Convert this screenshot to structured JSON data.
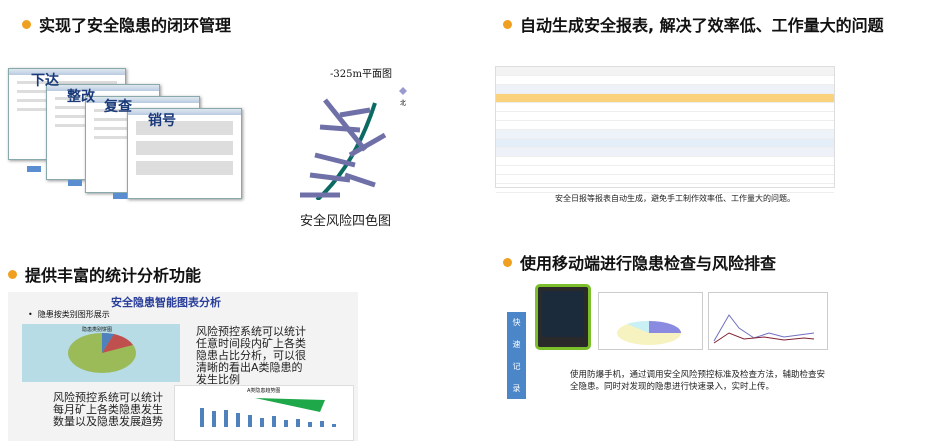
{
  "sections": [
    {
      "title": "实现了安全隐患的闭环管理"
    },
    {
      "title": "自动生成安全报表, 解决了效率低、工作量大的问题"
    },
    {
      "title": "提供丰富的统计分析功能"
    },
    {
      "title": "使用移动端进行隐患检查与风险排查"
    }
  ],
  "closed_loop": {
    "steps": [
      "下达",
      "整改",
      "复查",
      "销号"
    ],
    "map_title": "-325m平面图",
    "map_caption": "安全风险四色图",
    "compass_label": "北"
  },
  "report": {
    "caption": "安全日报等报表自动生成，避免手工制作效率低、工作量大的问题。"
  },
  "stats": {
    "panel_title": "安全隐患智能图表分析",
    "bullet": "隐患按类别图形展示",
    "pie_text": "风险预控系统可以统计任意时间段内矿上各类隐患占比分析，可以很清晰的看出A类隐患的发生比例",
    "trend_text": "风险预控系统可以统计每月矿上各类隐患发生数量以及隐患发展趋势",
    "pie_title": "隐患类别饼图",
    "bar_title": "A类隐患趋势图"
  },
  "mobile": {
    "side_label": [
      "快",
      "速",
      "记",
      "录"
    ],
    "description": "使用防爆手机，通过调用安全风险预控标准及检查方法，辅助检查安全隐患。同时对发现的隐患进行快速录入，实时上传。"
  },
  "colors": {
    "bullet": "#f0a020",
    "accent_blue": "#4a86c8",
    "pie_green": "#9bbb59",
    "pie_red": "#c0504d",
    "pie_blue": "#4f81bd"
  }
}
